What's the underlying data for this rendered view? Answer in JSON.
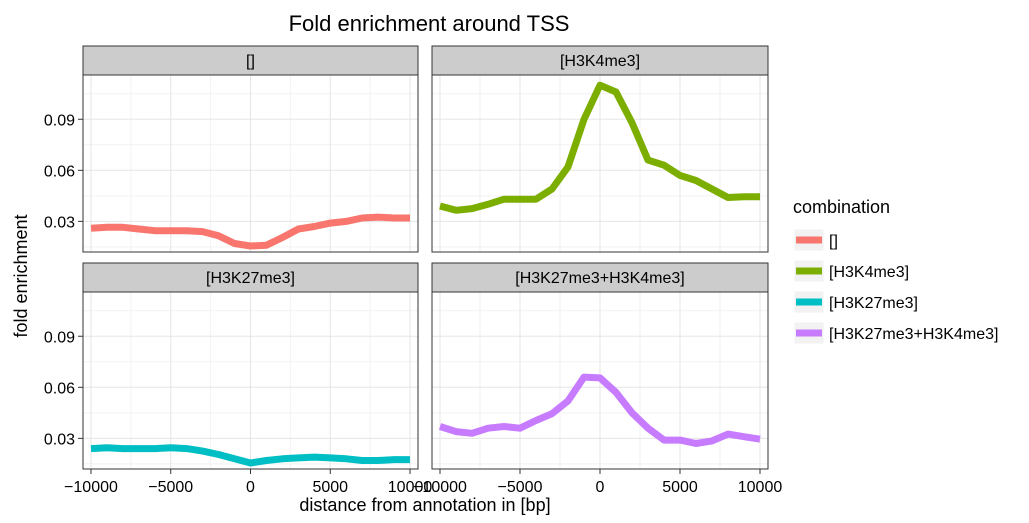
{
  "chart_data": {
    "type": "line",
    "title": "Fold enrichment around TSS",
    "xlabel": "distance from annotation in [bp]",
    "ylabel": "fold enrichment",
    "xlim": [
      -10500,
      10500
    ],
    "ylim": [
      0.012,
      0.116
    ],
    "xticks": [
      -10000,
      -5000,
      0,
      5000,
      10000
    ],
    "xtick_labels": [
      "−10000",
      "−5000",
      "0",
      "5000",
      "10000"
    ],
    "yticks": [
      0.03,
      0.06,
      0.09
    ],
    "ytick_labels": [
      "0.03",
      "0.06",
      "0.09"
    ],
    "grid": true,
    "legend": {
      "title": "combination",
      "position": "right"
    },
    "x": [
      -10000,
      -9000,
      -8000,
      -7000,
      -6000,
      -5000,
      -4000,
      -3000,
      -2000,
      -1000,
      0,
      1000,
      2000,
      3000,
      4000,
      5000,
      6000,
      7000,
      8000,
      9000,
      10000
    ],
    "series": [
      {
        "name": "[]",
        "panel": "[]",
        "color": "#F8766D",
        "values": [
          0.026,
          0.0265,
          0.0265,
          0.0255,
          0.0245,
          0.0245,
          0.0245,
          0.024,
          0.0215,
          0.017,
          0.0155,
          0.016,
          0.0205,
          0.0255,
          0.027,
          0.029,
          0.03,
          0.032,
          0.0325,
          0.032,
          0.032
        ]
      },
      {
        "name": "[H3K4me3]",
        "panel": "[H3K4me3]",
        "color": "#7CAE00",
        "values": [
          0.039,
          0.0365,
          0.0375,
          0.04,
          0.043,
          0.043,
          0.043,
          0.049,
          0.062,
          0.09,
          0.11,
          0.106,
          0.088,
          0.066,
          0.063,
          0.057,
          0.054,
          0.049,
          0.044,
          0.0445,
          0.0445
        ]
      },
      {
        "name": "[H3K27me3]",
        "panel": "[H3K27me3]",
        "color": "#00BFC4",
        "values": [
          0.024,
          0.0245,
          0.024,
          0.024,
          0.024,
          0.0245,
          0.024,
          0.0225,
          0.0205,
          0.018,
          0.0155,
          0.017,
          0.018,
          0.0185,
          0.019,
          0.0185,
          0.018,
          0.017,
          0.017,
          0.0175,
          0.0175
        ]
      },
      {
        "name": "[H3K27me3+H3K4me3]",
        "panel": "[H3K27me3+H3K4me3]",
        "color": "#C77CFF",
        "values": [
          0.037,
          0.034,
          0.033,
          0.036,
          0.037,
          0.036,
          0.0405,
          0.0445,
          0.052,
          0.066,
          0.0655,
          0.057,
          0.045,
          0.036,
          0.029,
          0.029,
          0.027,
          0.0285,
          0.0325,
          0.031,
          0.0295
        ]
      }
    ],
    "panels": [
      "[]",
      "[H3K4me3]",
      "[H3K27me3]",
      "[H3K27me3+H3K4me3]"
    ]
  }
}
